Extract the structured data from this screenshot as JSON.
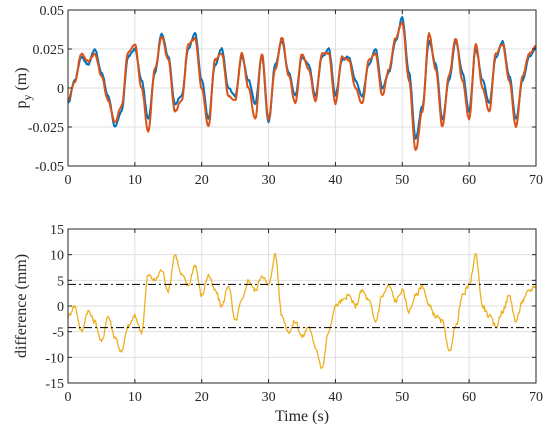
{
  "chart_data": [
    {
      "type": "line",
      "xlabel": "",
      "ylabel": "p",
      "ylabel_subscript": "y",
      "ylabel_unit": "(m)",
      "xlim": [
        0,
        70
      ],
      "ylim": [
        -0.05,
        0.05
      ],
      "xticks": [
        0,
        10,
        20,
        30,
        40,
        50,
        60,
        70
      ],
      "yticks": [
        -0.05,
        -0.025,
        0,
        0.025,
        0.05
      ],
      "xtick_labels": [
        "0",
        "10",
        "20",
        "30",
        "40",
        "50",
        "60",
        "70"
      ],
      "ytick_labels": [
        "-0.05",
        "-0.025",
        "0",
        "0.025",
        "0.05"
      ],
      "grid": true,
      "series": [
        {
          "color": "#0072BD",
          "x": [
            0,
            1,
            2,
            3,
            4,
            5,
            6,
            7,
            8,
            9,
            10,
            11,
            12,
            13,
            14,
            15,
            16,
            17,
            18,
            19,
            20,
            21,
            22,
            23,
            24,
            25,
            26,
            27,
            28,
            29,
            30,
            31,
            32,
            33,
            34,
            35,
            36,
            37,
            38,
            39,
            40,
            41,
            42,
            43,
            44,
            45,
            46,
            47,
            48,
            49,
            50,
            51,
            52,
            53,
            54,
            55,
            56,
            57,
            58,
            59,
            60,
            61,
            62,
            63,
            64,
            65,
            66,
            67,
            68,
            69,
            70
          ],
          "values": [
            -0.01,
            0.005,
            0.02,
            0.015,
            0.025,
            0.01,
            -0.005,
            -0.025,
            -0.015,
            0.02,
            0.025,
            0.005,
            -0.02,
            0.01,
            0.035,
            0.02,
            -0.01,
            -0.005,
            0.025,
            0.035,
            0.005,
            -0.02,
            0.015,
            0.025,
            0.0,
            -0.005,
            0.02,
            0.005,
            -0.01,
            0.02,
            -0.022,
            0.015,
            0.03,
            0.01,
            -0.005,
            0.02,
            0.015,
            -0.005,
            0.02,
            0.025,
            -0.005,
            0.018,
            0.02,
            0.005,
            -0.005,
            0.015,
            0.025,
            0.0,
            0.01,
            0.03,
            0.045,
            0.01,
            -0.032,
            -0.012,
            0.03,
            0.015,
            -0.02,
            0.005,
            0.03,
            0.01,
            -0.015,
            0.025,
            0.005,
            -0.01,
            0.02,
            0.03,
            0.008,
            -0.02,
            0.005,
            0.02,
            0.025
          ]
        },
        {
          "color": "#D95319",
          "x": [
            0,
            1,
            2,
            3,
            4,
            5,
            6,
            7,
            8,
            9,
            10,
            11,
            12,
            13,
            14,
            15,
            16,
            17,
            18,
            19,
            20,
            21,
            22,
            23,
            24,
            25,
            26,
            27,
            28,
            29,
            30,
            31,
            32,
            33,
            34,
            35,
            36,
            37,
            38,
            39,
            40,
            41,
            42,
            43,
            44,
            45,
            46,
            47,
            48,
            49,
            50,
            51,
            52,
            53,
            54,
            55,
            56,
            57,
            58,
            59,
            60,
            61,
            62,
            63,
            64,
            65,
            66,
            67,
            68,
            69,
            70
          ],
          "values": [
            -0.008,
            0.004,
            0.022,
            0.017,
            0.022,
            0.008,
            -0.008,
            -0.022,
            -0.012,
            0.023,
            0.028,
            0.0,
            -0.028,
            0.012,
            0.033,
            0.018,
            -0.015,
            -0.008,
            0.028,
            0.032,
            0.0,
            -0.025,
            0.018,
            0.022,
            -0.005,
            -0.008,
            0.022,
            0.0,
            -0.02,
            0.022,
            -0.02,
            0.012,
            0.032,
            0.008,
            -0.01,
            0.022,
            0.012,
            -0.008,
            0.022,
            0.022,
            -0.01,
            0.02,
            0.018,
            0.0,
            -0.01,
            0.018,
            0.022,
            -0.005,
            0.012,
            0.032,
            0.042,
            0.005,
            -0.04,
            -0.015,
            0.035,
            0.012,
            -0.025,
            0.008,
            0.032,
            0.005,
            -0.02,
            0.028,
            0.0,
            -0.015,
            0.022,
            0.028,
            0.005,
            -0.025,
            0.008,
            0.022,
            0.027
          ]
        }
      ]
    },
    {
      "type": "line",
      "xlabel": "Time (s)",
      "ylabel": "difference (mm)",
      "xlim": [
        0,
        70
      ],
      "ylim": [
        -15,
        15
      ],
      "xticks": [
        0,
        10,
        20,
        30,
        40,
        50,
        60,
        70
      ],
      "yticks": [
        -15,
        -10,
        -5,
        0,
        5,
        10,
        15
      ],
      "xtick_labels": [
        "0",
        "10",
        "20",
        "30",
        "40",
        "50",
        "60",
        "70"
      ],
      "ytick_labels": [
        "-15",
        "-10",
        "-5",
        "0",
        "5",
        "10",
        "15"
      ],
      "grid": true,
      "series": [
        {
          "color": "#EDB120",
          "x": [
            0,
            1,
            2,
            3,
            4,
            5,
            6,
            7,
            8,
            9,
            10,
            11,
            12,
            13,
            14,
            15,
            16,
            17,
            18,
            19,
            20,
            21,
            22,
            23,
            24,
            25,
            26,
            27,
            28,
            29,
            30,
            31,
            32,
            33,
            34,
            35,
            36,
            37,
            38,
            39,
            40,
            41,
            42,
            43,
            44,
            45,
            46,
            47,
            48,
            49,
            50,
            51,
            52,
            53,
            54,
            55,
            56,
            57,
            58,
            59,
            60,
            61,
            62,
            63,
            64,
            65,
            66,
            67,
            68,
            69,
            70
          ],
          "values": [
            -2,
            0,
            -5,
            -1,
            -3,
            -7,
            -2,
            -6,
            -9,
            -4,
            -2,
            -5,
            6,
            5,
            7,
            3,
            10,
            6,
            4,
            8,
            2,
            6,
            3,
            0,
            4,
            -3,
            1,
            5,
            3,
            6,
            4,
            10,
            -2,
            -5,
            -3,
            -6,
            -4,
            -8,
            -12,
            -5,
            0,
            1,
            2,
            0,
            3,
            1,
            -3,
            2,
            4,
            1,
            3,
            -1,
            2,
            4,
            0,
            -2,
            -3,
            -9,
            -4,
            2,
            4,
            10,
            0,
            -2,
            -4,
            -1,
            2,
            -3,
            1,
            3,
            4
          ],
          "threshold": 4.2
        }
      ]
    }
  ]
}
